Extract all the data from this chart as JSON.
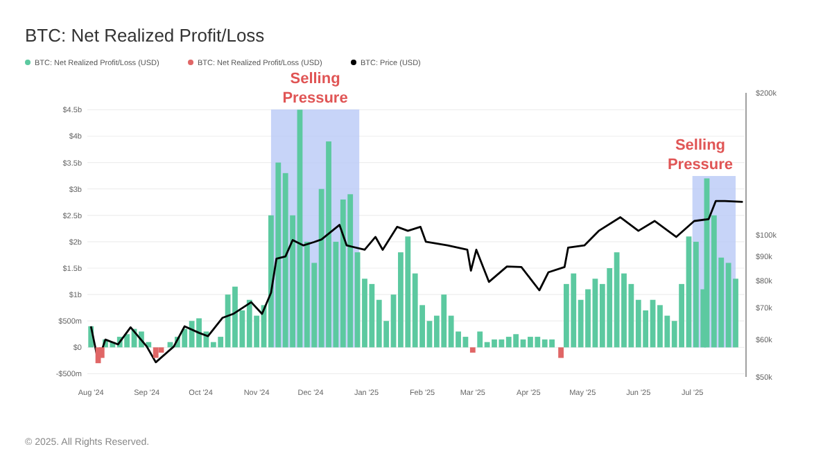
{
  "chart_data": {
    "type": "bar",
    "title": "BTC: Net Realized Profit/Loss",
    "legend": "top left",
    "grid": "y",
    "log": "y2",
    "xlim": [
      "2024-07-30",
      "2025-07-30"
    ],
    "xticks": [
      {
        "value": "2024-08-01",
        "label": "Aug '24"
      },
      {
        "value": "2024-09-01",
        "label": "Sep '24"
      },
      {
        "value": "2024-10-01",
        "label": "Oct '24"
      },
      {
        "value": "2024-11-01",
        "label": "Nov '24"
      },
      {
        "value": "2024-12-01",
        "label": "Dec '24"
      },
      {
        "value": "2025-01-01",
        "label": "Jan '25"
      },
      {
        "value": "2025-02-01",
        "label": "Feb '25"
      },
      {
        "value": "2025-03-01",
        "label": "Mar '25"
      },
      {
        "value": "2025-04-01",
        "label": "Apr '25"
      },
      {
        "value": "2025-05-01",
        "label": "May '25"
      },
      {
        "value": "2025-06-01",
        "label": "Jun '25"
      },
      {
        "value": "2025-07-01",
        "label": "Jul '25"
      }
    ],
    "ylim": [
      -560000000,
      4820000000
    ],
    "yticks": [
      {
        "value": -500000000,
        "label": "-$500m"
      },
      {
        "value": 0,
        "label": "$0"
      },
      {
        "value": 500000000,
        "label": "$500m"
      },
      {
        "value": 1000000000,
        "label": "$1b"
      },
      {
        "value": 1500000000,
        "label": "$1.5b"
      },
      {
        "value": 2000000000,
        "label": "$2b"
      },
      {
        "value": 2500000000,
        "label": "$2.5b"
      },
      {
        "value": 3000000000,
        "label": "$3b"
      },
      {
        "value": 3500000000,
        "label": "$3.5b"
      },
      {
        "value": 4000000000,
        "label": "$4b"
      },
      {
        "value": 4500000000,
        "label": "$4.5b"
      }
    ],
    "y2lim": [
      50000,
      200000
    ],
    "y2ticks": [
      {
        "value": 50000,
        "label": "$50k"
      },
      {
        "value": 60000,
        "label": "$60k"
      },
      {
        "value": 70000,
        "label": "$70k"
      },
      {
        "value": 80000,
        "label": "$80k"
      },
      {
        "value": 90000,
        "label": "$90k"
      },
      {
        "value": 100000,
        "label": "$100k"
      },
      {
        "value": 200000,
        "label": "$200k"
      }
    ],
    "bands": [
      {
        "axis": "x",
        "from": "2024-11-09",
        "to": "2024-12-28",
        "label": "Selling Pressure",
        "color": "#b9c9f6"
      },
      {
        "axis": "x",
        "from": "2025-07-01",
        "to": "2025-07-25",
        "label": "Selling Pressure",
        "color": "#b9c9f6"
      }
    ],
    "series": [
      {
        "name": "BTC: Net Realized Profit/Loss (USD)",
        "color": "#5cc9a0",
        "x": [
          "2024-08-01",
          "2024-08-09",
          "2024-08-13",
          "2024-08-17",
          "2024-08-21",
          "2024-08-25",
          "2024-08-29",
          "2024-09-02",
          "2024-09-14",
          "2024-09-18",
          "2024-09-22",
          "2024-09-26",
          "2024-09-30",
          "2024-10-04",
          "2024-10-08",
          "2024-10-12",
          "2024-10-16",
          "2024-10-20",
          "2024-10-24",
          "2024-10-28",
          "2024-11-01",
          "2024-11-05",
          "2024-11-09",
          "2024-11-13",
          "2024-11-17",
          "2024-11-21",
          "2024-11-25",
          "2024-11-29",
          "2024-12-03",
          "2024-12-07",
          "2024-12-11",
          "2024-12-15",
          "2024-12-19",
          "2024-12-23",
          "2024-12-27",
          "2024-12-31",
          "2025-01-04",
          "2025-01-08",
          "2025-01-12",
          "2025-01-16",
          "2025-01-20",
          "2025-01-24",
          "2025-01-28",
          "2025-02-01",
          "2025-02-05",
          "2025-02-09",
          "2025-02-13",
          "2025-02-17",
          "2025-02-21",
          "2025-02-25",
          "2025-03-05",
          "2025-03-09",
          "2025-03-13",
          "2025-03-17",
          "2025-03-21",
          "2025-03-25",
          "2025-03-29",
          "2025-04-02",
          "2025-04-06",
          "2025-04-10",
          "2025-04-14",
          "2025-04-22",
          "2025-04-26",
          "2025-04-30",
          "2025-05-04",
          "2025-05-08",
          "2025-05-12",
          "2025-05-16",
          "2025-05-20",
          "2025-05-24",
          "2025-05-28",
          "2025-06-01",
          "2025-06-05",
          "2025-06-09",
          "2025-06-13",
          "2025-06-17",
          "2025-06-21",
          "2025-06-25",
          "2025-06-29",
          "2025-07-03",
          "2025-07-07",
          "2025-07-09",
          "2025-07-13",
          "2025-07-17",
          "2025-07-21",
          "2025-07-25"
        ],
        "values": [
          400000000,
          150000000,
          100000000,
          200000000,
          250000000,
          350000000,
          300000000,
          100000000,
          100000000,
          200000000,
          350000000,
          500000000,
          550000000,
          300000000,
          100000000,
          200000000,
          1000000000,
          1150000000,
          700000000,
          900000000,
          600000000,
          800000000,
          2500000000,
          3500000000,
          3300000000,
          2500000000,
          4500000000,
          2000000000,
          1600000000,
          3000000000,
          3900000000,
          2000000000,
          2800000000,
          2900000000,
          1800000000,
          1300000000,
          1200000000,
          900000000,
          500000000,
          1000000000,
          1800000000,
          2100000000,
          1400000000,
          800000000,
          500000000,
          600000000,
          1000000000,
          600000000,
          300000000,
          200000000,
          300000000,
          100000000,
          150000000,
          150000000,
          200000000,
          250000000,
          150000000,
          200000000,
          200000000,
          150000000,
          150000000,
          1200000000,
          1400000000,
          900000000,
          1100000000,
          1300000000,
          1200000000,
          1500000000,
          1800000000,
          1400000000,
          1200000000,
          900000000,
          700000000,
          900000000,
          800000000,
          600000000,
          500000000,
          1200000000,
          2100000000,
          2000000000,
          1100000000,
          3200000000,
          2500000000,
          1700000000,
          1600000000,
          1300000000
        ]
      },
      {
        "name": "BTC: Net Realized Profit/Loss (USD)",
        "color": "#e06666",
        "x": [
          "2024-08-05",
          "2024-08-07",
          "2024-09-06",
          "2024-09-09",
          "2025-03-01",
          "2025-04-19"
        ],
        "values": [
          -300000000,
          -200000000,
          -200000000,
          -100000000,
          -100000000,
          -200000000
        ]
      },
      {
        "type": "line",
        "name": "BTC: Price (USD)",
        "color": "#000000",
        "axis": "y2",
        "x": [
          "2024-08-01",
          "2024-08-05",
          "2024-08-09",
          "2024-08-16",
          "2024-08-23",
          "2024-09-01",
          "2024-09-06",
          "2024-09-16",
          "2024-09-22",
          "2024-09-30",
          "2024-10-05",
          "2024-10-13",
          "2024-10-19",
          "2024-10-29",
          "2024-11-04",
          "2024-11-09",
          "2024-11-12",
          "2024-11-17",
          "2024-11-21",
          "2024-11-27",
          "2024-12-03",
          "2024-12-07",
          "2024-12-17",
          "2024-12-21",
          "2024-12-31",
          "2025-01-06",
          "2025-01-10",
          "2025-01-18",
          "2025-01-24",
          "2025-01-31",
          "2025-02-03",
          "2025-02-15",
          "2025-02-26",
          "2025-02-28",
          "2025-03-03",
          "2025-03-10",
          "2025-03-20",
          "2025-03-28",
          "2025-04-07",
          "2025-04-12",
          "2025-04-21",
          "2025-04-23",
          "2025-05-02",
          "2025-05-10",
          "2025-05-22",
          "2025-06-01",
          "2025-06-10",
          "2025-06-22",
          "2025-07-02",
          "2025-07-10",
          "2025-07-14",
          "2025-07-19",
          "2025-07-29"
        ],
        "values": [
          64000,
          54000,
          60000,
          58600,
          63700,
          58000,
          53700,
          58000,
          64000,
          62000,
          61000,
          66700,
          68000,
          72000,
          68000,
          75400,
          89000,
          90000,
          97500,
          95000,
          96600,
          97800,
          105000,
          95000,
          93000,
          99000,
          93000,
          104000,
          102000,
          104000,
          96700,
          95000,
          93000,
          84000,
          93000,
          79500,
          85700,
          85500,
          76300,
          83300,
          85500,
          94000,
          95000,
          102000,
          109000,
          102000,
          107000,
          99000,
          107000,
          108000,
          118000,
          118000,
          117500
        ]
      }
    ],
    "annotations": [
      "© 2025. All Rights Reserved."
    ]
  }
}
